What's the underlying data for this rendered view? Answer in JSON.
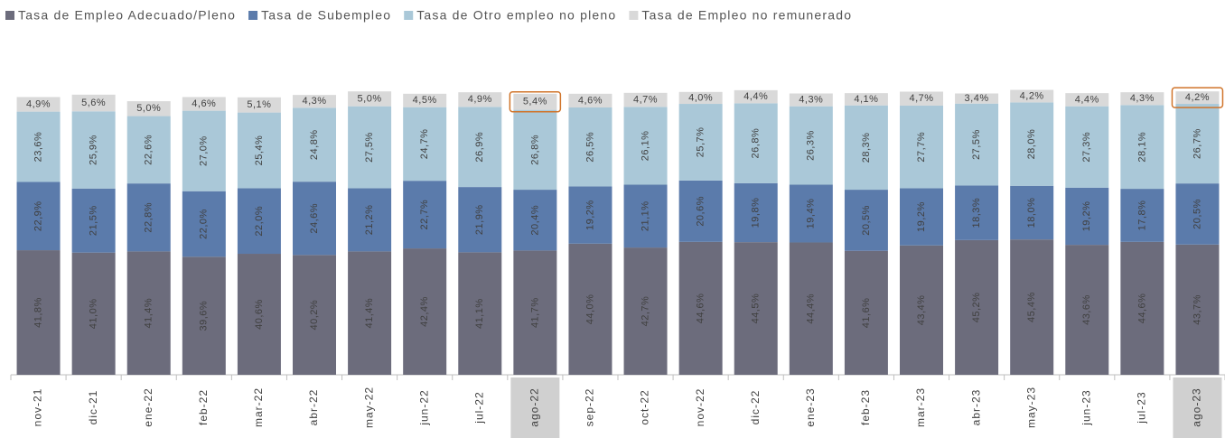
{
  "chart_data": {
    "type": "stacked_bar",
    "categories": [
      "nov-21",
      "dic-21",
      "ene-22",
      "feb-22",
      "mar-22",
      "abr-22",
      "may-22",
      "jun-22",
      "jul-22",
      "ago-22",
      "sep-22",
      "oct-22",
      "nov-22",
      "dic-22",
      "ene-23",
      "feb-23",
      "mar-23",
      "abr-23",
      "may-23",
      "jun-23",
      "jul-23",
      "ago-23"
    ],
    "highlighted_categories": [
      "ago-22",
      "ago-23"
    ],
    "series": [
      {
        "name": "Tasa de Empleo Adecuado/Pleno",
        "color": "#6c6c7c",
        "values": [
          41.8,
          41.0,
          41.4,
          39.6,
          40.6,
          40.2,
          41.4,
          42.4,
          41.1,
          41.7,
          44.0,
          42.7,
          44.6,
          44.5,
          44.4,
          41.6,
          43.4,
          45.2,
          45.4,
          43.6,
          44.6,
          43.7
        ],
        "value_labels": [
          "41,8%",
          "41,0%",
          "41,4%",
          "39,6%",
          "40,6%",
          "40,2%",
          "41,4%",
          "42,4%",
          "41,1%",
          "41,7%",
          "44,0%",
          "42,7%",
          "44,6%",
          "44,5%",
          "44,4%",
          "41,6%",
          "43,4%",
          "45,2%",
          "45,4%",
          "43,6%",
          "44,6%",
          "43,7%"
        ]
      },
      {
        "name": "Tasa de Subempleo",
        "color": "#5b7bab",
        "values": [
          22.9,
          21.5,
          22.8,
          22.0,
          22.0,
          24.6,
          21.2,
          22.7,
          21.9,
          20.4,
          19.2,
          21.1,
          20.6,
          19.8,
          19.4,
          20.5,
          19.2,
          18.3,
          18.0,
          19.2,
          17.8,
          20.5
        ],
        "value_labels": [
          "22,9%",
          "21,5%",
          "22,8%",
          "22,0%",
          "22,0%",
          "24,6%",
          "21,2%",
          "22,7%",
          "21,9%",
          "20,4%",
          "19,2%",
          "21,1%",
          "20,6%",
          "19,8%",
          "19,4%",
          "20,5%",
          "19,2%",
          "18,3%",
          "18,0%",
          "19,2%",
          "17,8%",
          "20,5%"
        ]
      },
      {
        "name": "Tasa de Otro empleo no pleno",
        "color": "#aac8d8",
        "values": [
          23.6,
          25.9,
          22.6,
          27.0,
          25.4,
          24.8,
          27.5,
          24.7,
          26.9,
          26.8,
          26.5,
          26.1,
          25.7,
          26.8,
          26.3,
          28.3,
          27.7,
          27.5,
          28.0,
          27.3,
          28.1,
          26.7
        ],
        "value_labels": [
          "23,6%",
          "25,9%",
          "22,6%",
          "27,0%",
          "25,4%",
          "24,8%",
          "27,5%",
          "24,7%",
          "26,9%",
          "26,8%",
          "26,5%",
          "26,1%",
          "25,7%",
          "26,8%",
          "26,3%",
          "28,3%",
          "27,7%",
          "27,5%",
          "28,0%",
          "27,3%",
          "28,1%",
          "26,7%"
        ]
      },
      {
        "name": "Tasa de Empleo no remunerado",
        "color": "#d9d9d9",
        "values": [
          4.9,
          5.6,
          5.0,
          4.6,
          5.1,
          4.3,
          5.0,
          4.5,
          4.9,
          5.4,
          4.6,
          4.7,
          4.0,
          4.4,
          4.3,
          4.1,
          4.7,
          3.4,
          4.2,
          4.4,
          4.3,
          4.2
        ],
        "value_labels": [
          "4,9%",
          "5,6%",
          "5,0%",
          "4,6%",
          "5,1%",
          "4,3%",
          "5,0%",
          "4,5%",
          "4,9%",
          "5,4%",
          "4,6%",
          "4,7%",
          "4,0%",
          "4,4%",
          "4,3%",
          "4,1%",
          "4,7%",
          "3,4%",
          "4,2%",
          "4,4%",
          "4,3%",
          "4,2%"
        ]
      }
    ]
  }
}
